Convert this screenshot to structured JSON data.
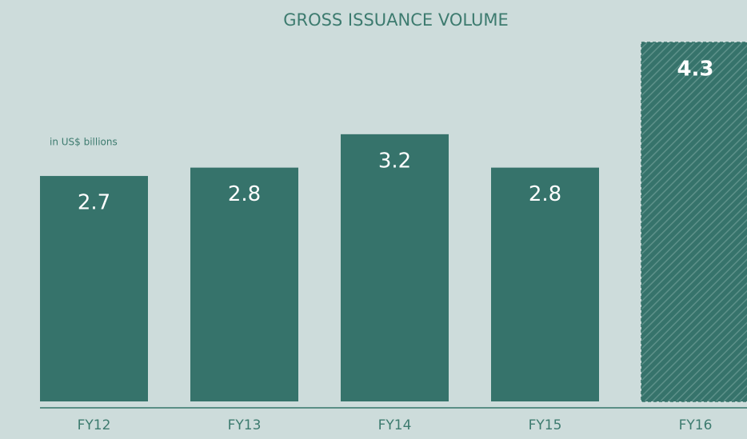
{
  "chart_data": {
    "type": "bar",
    "title": "GROSS ISSUANCE VOLUME",
    "subtitle": "in US$ billions",
    "categories": [
      "FY12",
      "FY13",
      "FY14",
      "FY15",
      "FY16"
    ],
    "values": [
      2.7,
      2.8,
      3.2,
      2.8,
      4.3
    ],
    "color": "#36736b",
    "hatched": [
      false,
      false,
      false,
      false,
      true
    ]
  }
}
